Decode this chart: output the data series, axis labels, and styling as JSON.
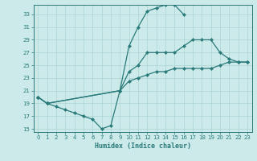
{
  "xlabel": "Humidex (Indice chaleur)",
  "bg_color": "#cceaea",
  "line_color": "#2a7a7a",
  "grid_color": "#aad4d4",
  "xlim": [
    -0.5,
    23.5
  ],
  "ylim": [
    14.5,
    34.5
  ],
  "yticks": [
    15,
    17,
    19,
    21,
    23,
    25,
    27,
    29,
    31,
    33
  ],
  "xticks": [
    0,
    1,
    2,
    3,
    4,
    5,
    6,
    7,
    8,
    9,
    10,
    11,
    12,
    13,
    14,
    15,
    16,
    17,
    18,
    19,
    20,
    21,
    22,
    23
  ],
  "line1_x": [
    0,
    1,
    2,
    3,
    4,
    5,
    6,
    7,
    8,
    9,
    10,
    11,
    12,
    13,
    14,
    15,
    16
  ],
  "line1_y": [
    20,
    19,
    18.5,
    18,
    17.5,
    17,
    16.5,
    15,
    15.5,
    21,
    28,
    31,
    33.5,
    34,
    34.5,
    34.5,
    33
  ],
  "line2_x": [
    0,
    1,
    9,
    10,
    11,
    12,
    13,
    14,
    15,
    16,
    17,
    18,
    19,
    20,
    21,
    22,
    23
  ],
  "line2_y": [
    20,
    19,
    21,
    24,
    25,
    27,
    27,
    27,
    27,
    28,
    29,
    29,
    29,
    27,
    26,
    25.5,
    25.5
  ],
  "line3_x": [
    0,
    1,
    9,
    10,
    11,
    12,
    13,
    14,
    15,
    16,
    17,
    18,
    19,
    20,
    21,
    22,
    23
  ],
  "line3_y": [
    20,
    19,
    21,
    22.5,
    23,
    23.5,
    24,
    24,
    24.5,
    24.5,
    24.5,
    24.5,
    24.5,
    25,
    25.5,
    25.5,
    25.5
  ]
}
